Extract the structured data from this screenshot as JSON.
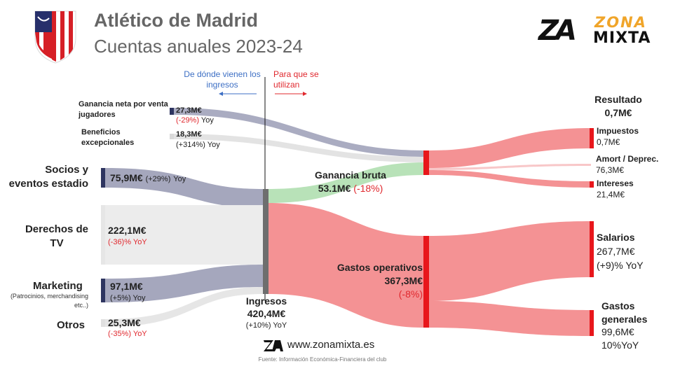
{
  "header": {
    "title": "Atlético de Madrid",
    "subtitle": "Cuentas anuales 2023-24"
  },
  "brand": {
    "zona": "ZONA",
    "mixta": "MIXTA",
    "mark": "ZA"
  },
  "guide": {
    "left": "De dónde vienen los ingresos",
    "right": "Para que se utilizan"
  },
  "sources": {
    "jugadores": {
      "label": "Ganancia neta por venta jugadores",
      "value": "27,3M€",
      "change": "(-29%)",
      "yoy": "Yoy"
    },
    "excepcionales": {
      "label": "Beneficios excepcionales",
      "value": "18,3M€",
      "change": "(+314%)",
      "yoy": "Yoy"
    },
    "socios": {
      "label": "Socios y eventos estadio",
      "value": "75,9M€",
      "change": "(+29%)",
      "yoy": "Yoy"
    },
    "tv": {
      "label": "Derechos de TV",
      "value": "222,1M€",
      "change": "(-36)% YoY"
    },
    "marketing": {
      "label": "Marketing",
      "sublabel": "(Patrocinios, merchandising etc..)",
      "value": "97,1M€",
      "change": "(+5%) Yoy"
    },
    "otros": {
      "label": "Otros",
      "value": "25,3M€",
      "change": "(-35%) YoY"
    }
  },
  "ingresos": {
    "label": "Ingresos",
    "value": "420,4M€",
    "change": "(+10%) YoY"
  },
  "ganancia_bruta": {
    "label": "Ganancia bruta",
    "value": "53.1M€",
    "change": "(-18%)"
  },
  "gastos_operativos": {
    "label": "Gastos operativos",
    "value": "367,3M€",
    "change": "(-8%)"
  },
  "outputs": {
    "resultado": {
      "label": "Resultado",
      "value": "0,7M€"
    },
    "impuestos": {
      "label": "Impuestos",
      "value": "0,7M€"
    },
    "amort": {
      "label": "Amort / Deprec.",
      "value": "76,3M€"
    },
    "intereses": {
      "label": "Intereses",
      "value": "21,4M€"
    },
    "salarios": {
      "label": "Salarios",
      "value": "267,7M€",
      "change": "(+9)% YoY"
    },
    "gastos_generales": {
      "label": "Gastos generales",
      "value": "99,6M€",
      "change": "10%YoY"
    }
  },
  "footer": {
    "website": "www.zonamixta.es",
    "source": "Fuente: Información Económica-Financiera del club"
  },
  "colors": {
    "navy": "#2e3560",
    "grey_node": "#6e6e6e",
    "red": "#e8161b",
    "green": "#6dc46d",
    "blue_text": "#3d6fc4",
    "red_text": "#e0282e"
  },
  "chart_data": {
    "type": "sankey",
    "nodes": [
      "Ganancia neta por venta jugadores",
      "Beneficios excepcionales",
      "Socios y eventos estadio",
      "Derechos de TV",
      "Marketing",
      "Otros",
      "Ingresos",
      "Ganancia bruta",
      "Gastos operativos",
      "Resultado",
      "Impuestos",
      "Amort / Deprec.",
      "Intereses",
      "Salarios",
      "Gastos generales"
    ],
    "links": [
      {
        "source": "Ganancia neta por venta jugadores",
        "target": "Ganancia bruta",
        "value": 27.3
      },
      {
        "source": "Beneficios excepcionales",
        "target": "Ganancia bruta",
        "value": 18.3
      },
      {
        "source": "Socios y eventos estadio",
        "target": "Ingresos",
        "value": 75.9
      },
      {
        "source": "Derechos de TV",
        "target": "Ingresos",
        "value": 222.1
      },
      {
        "source": "Marketing",
        "target": "Ingresos",
        "value": 97.1
      },
      {
        "source": "Otros",
        "target": "Ingresos",
        "value": 25.3
      },
      {
        "source": "Ingresos",
        "target": "Ganancia bruta",
        "value": 53.1
      },
      {
        "source": "Ingresos",
        "target": "Gastos operativos",
        "value": 367.3
      },
      {
        "source": "Ganancia bruta",
        "target": "Resultado",
        "value": 0.7
      },
      {
        "source": "Ganancia bruta",
        "target": "Impuestos",
        "value": 0.7
      },
      {
        "source": "Ganancia bruta",
        "target": "Amort / Deprec.",
        "value": 76.3
      },
      {
        "source": "Ganancia bruta",
        "target": "Intereses",
        "value": 21.4
      },
      {
        "source": "Gastos operativos",
        "target": "Salarios",
        "value": 267.7
      },
      {
        "source": "Gastos operativos",
        "target": "Gastos generales",
        "value": 99.6
      }
    ]
  }
}
